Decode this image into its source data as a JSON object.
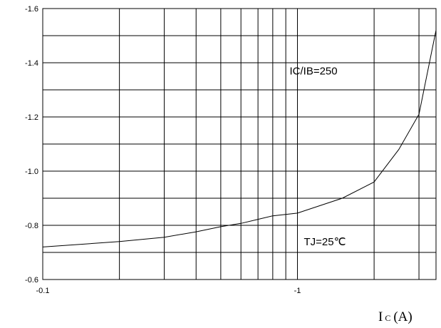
{
  "chart_data": {
    "type": "line",
    "x_scale": "log",
    "xlim": [
      0.1,
      3.5
    ],
    "ylim": [
      -0.6,
      -1.6
    ],
    "y_inverted": true,
    "grid": true,
    "x_ticks": [
      {
        "value": 0.1,
        "label": "-0.1"
      },
      {
        "value": 1,
        "label": "-1"
      }
    ],
    "y_ticks": [
      {
        "value": -1.6,
        "label": "-1.6"
      },
      {
        "value": -1.4,
        "label": "-1.4"
      },
      {
        "value": -1.2,
        "label": "-1.2"
      },
      {
        "value": -1.0,
        "label": "-1.0"
      },
      {
        "value": -0.8,
        "label": "-0.8"
      },
      {
        "value": -0.6,
        "label": "-0.6"
      }
    ],
    "x_grid": [
      0.2,
      0.3,
      0.4,
      0.5,
      0.6,
      0.7,
      0.8,
      0.9,
      1,
      2,
      3
    ],
    "y_grid": [
      -1.5,
      -1.4,
      -1.3,
      -1.2,
      -1.1,
      -1.0,
      -0.9,
      -0.8,
      -0.7
    ],
    "series": [
      {
        "x": [
          0.1,
          0.2,
          0.3,
          0.4,
          0.5,
          0.6,
          0.7,
          0.8,
          1.0,
          1.5,
          2.0,
          2.5,
          3.0,
          3.5
        ],
        "y": [
          -0.72,
          -0.74,
          -0.756,
          -0.776,
          -0.795,
          -0.807,
          -0.822,
          -0.835,
          -0.845,
          -0.9,
          -0.96,
          -1.08,
          -1.21,
          -1.52
        ]
      }
    ],
    "annotations": [
      {
        "text": "IC/IB=250",
        "x": 1.0,
        "y": -1.37
      },
      {
        "text": "TJ=25℃",
        "x": 1.0,
        "y": -0.74
      }
    ],
    "xlabel_main": "I",
    "xlabel_sub": "C",
    "xlabel_unit": "(A)"
  }
}
